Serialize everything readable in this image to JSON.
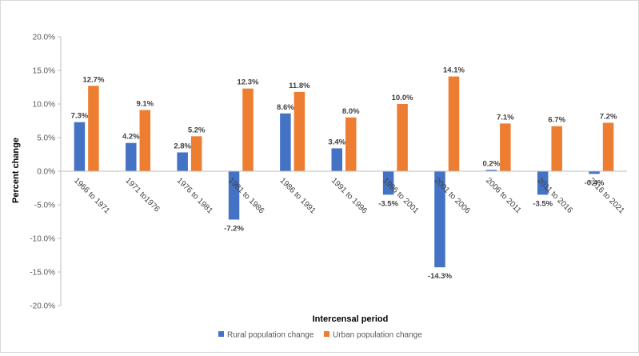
{
  "chart_data": {
    "type": "bar",
    "title": "",
    "xlabel": "Intercensal period",
    "ylabel": "Percent change",
    "ylim": [
      -20,
      20
    ],
    "yticks": [
      20,
      15,
      10,
      5,
      0,
      -5,
      -10,
      -15,
      -20
    ],
    "ytick_labels": [
      "20.0%",
      "15.0%",
      "10.0%",
      "5.0%",
      "0.0%",
      "-5.0%",
      "-10.0%",
      "-15.0%",
      "-20.0%"
    ],
    "grid": false,
    "legend_position": "bottom",
    "categories": [
      "1966 to 1971",
      "1971 to1976",
      "1976 to 1981",
      "1981 to 1986",
      "1986 to 1991",
      "1991 to 1996",
      "1996 to 2001",
      "2001 to 2006",
      "2006 to 2011",
      "2011 to 2016",
      "2016 to 2021"
    ],
    "series": [
      {
        "name": "Rural population change",
        "color": "#4472C4",
        "values": [
          7.3,
          4.2,
          2.8,
          -7.2,
          8.6,
          3.4,
          -3.5,
          -14.3,
          0.2,
          -3.5,
          -0.4
        ],
        "labels": [
          "7.3%",
          "4.2%",
          "2.8%",
          "-7.2%",
          "8.6%",
          "3.4%",
          "-3.5%",
          "-14.3%",
          "0.2%",
          "-3.5%",
          "-0.4%"
        ]
      },
      {
        "name": "Urban population change",
        "color": "#ED7D31",
        "values": [
          12.7,
          9.1,
          5.2,
          12.3,
          11.8,
          8.0,
          10.0,
          14.1,
          7.1,
          6.7,
          7.2
        ],
        "labels": [
          "12.7%",
          "9.1%",
          "5.2%",
          "12.3%",
          "11.8%",
          "8.0%",
          "10.0%",
          "14.1%",
          "7.1%",
          "6.7%",
          "7.2%"
        ]
      }
    ]
  }
}
